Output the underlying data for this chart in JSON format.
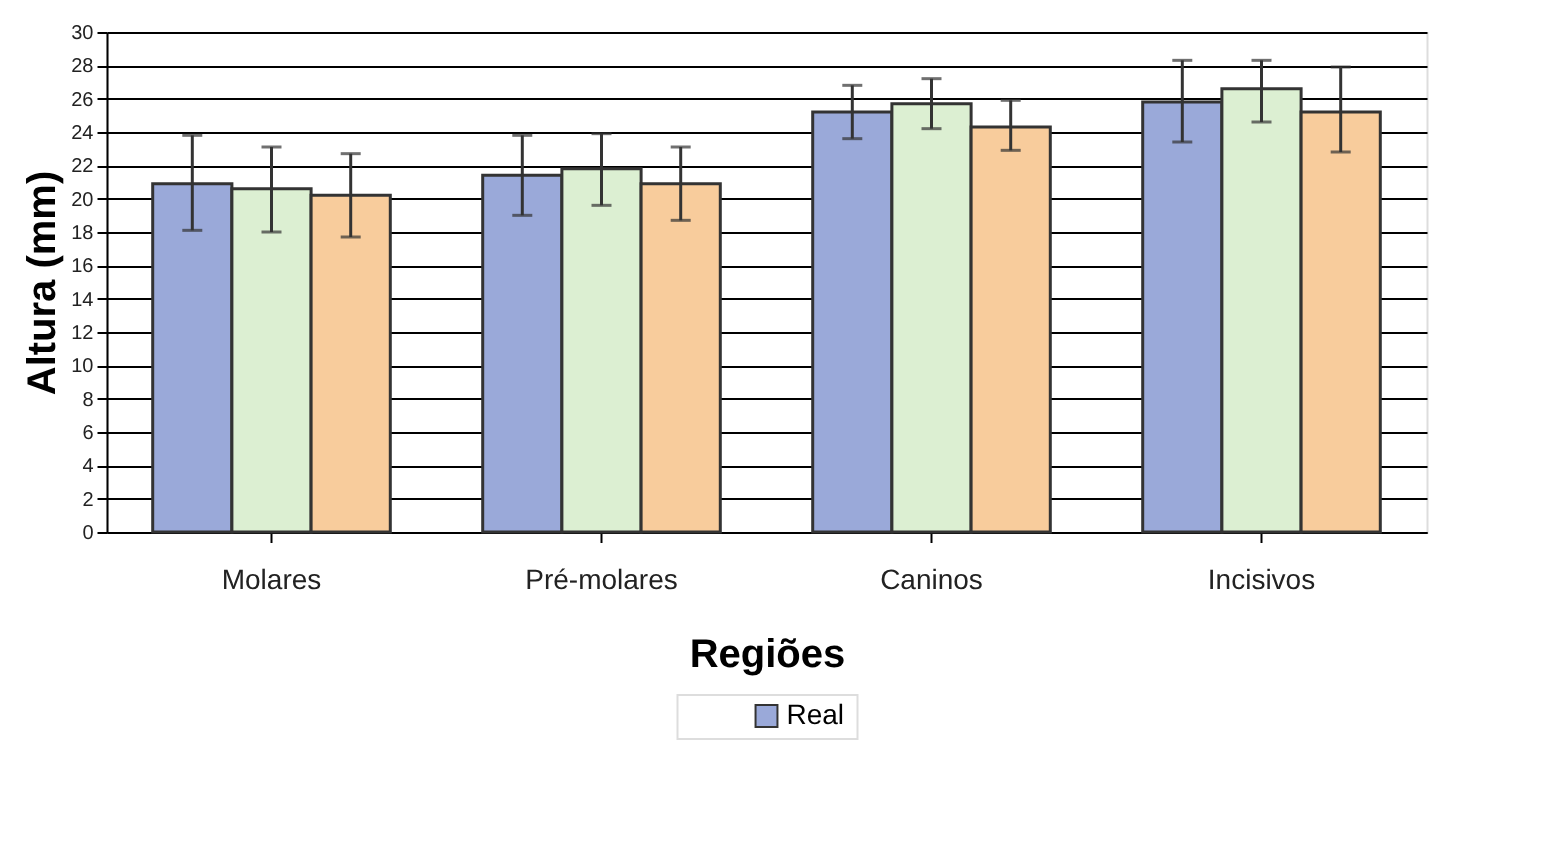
{
  "chart_data": {
    "type": "bar",
    "xlabel": "Regiões",
    "ylabel": "Altura (mm)",
    "categories": [
      "Molares",
      "Pré-molares",
      "Caninos",
      "Incisivos"
    ],
    "series": [
      {
        "name": "Real",
        "color": "#9aa9d9",
        "values": [
          20.9,
          21.4,
          25.2,
          25.8
        ],
        "errors": [
          [
            18.1,
            23.8
          ],
          [
            19.0,
            23.8
          ],
          [
            23.6,
            26.8
          ],
          [
            23.4,
            28.3
          ]
        ]
      },
      {
        "color": "#dcefd2",
        "values": [
          20.6,
          21.8,
          25.7,
          26.6
        ],
        "errors": [
          [
            18.0,
            23.1
          ],
          [
            19.6,
            23.9
          ],
          [
            24.2,
            27.2
          ],
          [
            24.6,
            28.3
          ]
        ]
      },
      {
        "color": "#f8cc9c",
        "values": [
          20.2,
          20.9,
          24.3,
          25.2
        ],
        "errors": [
          [
            17.7,
            22.7
          ],
          [
            18.7,
            23.1
          ],
          [
            22.9,
            25.9
          ],
          [
            22.8,
            27.9
          ]
        ]
      }
    ],
    "ylim": [
      0,
      30
    ],
    "yticks": [
      0,
      2,
      4,
      6,
      8,
      10,
      12,
      14,
      16,
      18,
      20,
      22,
      24,
      26,
      28,
      30
    ],
    "grid": "y",
    "legend": "bottom"
  }
}
